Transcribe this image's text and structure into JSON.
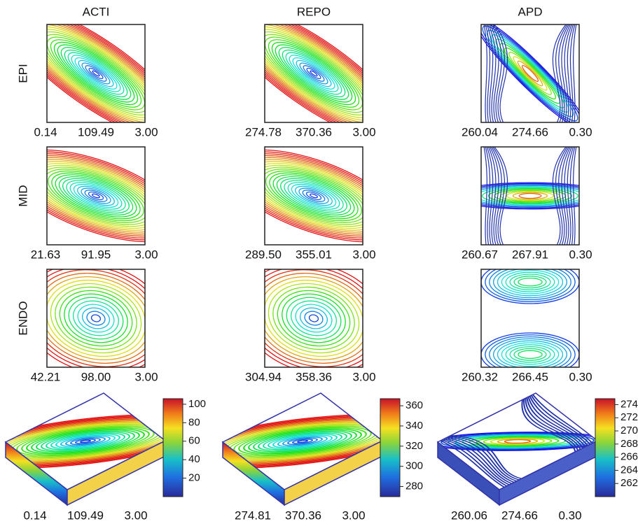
{
  "columns": [
    "ACTI",
    "REPO",
    "APD"
  ],
  "rows": [
    "EPI",
    "MID",
    "ENDO"
  ],
  "captions": [
    [
      [
        "0.14",
        "109.49",
        "3.00"
      ],
      [
        "274.78",
        "370.36",
        "3.00"
      ],
      [
        "260.04",
        "274.66",
        "0.30"
      ]
    ],
    [
      [
        "21.63",
        "91.95",
        "3.00"
      ],
      [
        "289.50",
        "355.01",
        "3.00"
      ],
      [
        "260.67",
        "267.91",
        "0.30"
      ]
    ],
    [
      [
        "42.21",
        "98.00",
        "3.00"
      ],
      [
        "304.94",
        "358.36",
        "3.00"
      ],
      [
        "260.32",
        "266.45",
        "0.30"
      ]
    ]
  ],
  "box_captions": [
    [
      "0.14",
      "109.49",
      "3.00"
    ],
    [
      "274.81",
      "370.36",
      "3.00"
    ],
    [
      "260.06",
      "274.66",
      "0.30"
    ]
  ],
  "colorbars": [
    {
      "ylim": [
        0,
        106
      ],
      "yticks": [
        20,
        40,
        60,
        80,
        100
      ]
    },
    {
      "ylim": [
        270,
        367
      ],
      "yticks": [
        280,
        300,
        320,
        340,
        360
      ]
    },
    {
      "ylim": [
        260,
        274.9
      ],
      "yticks": [
        262,
        264,
        266,
        268,
        270,
        272,
        274
      ]
    }
  ]
}
